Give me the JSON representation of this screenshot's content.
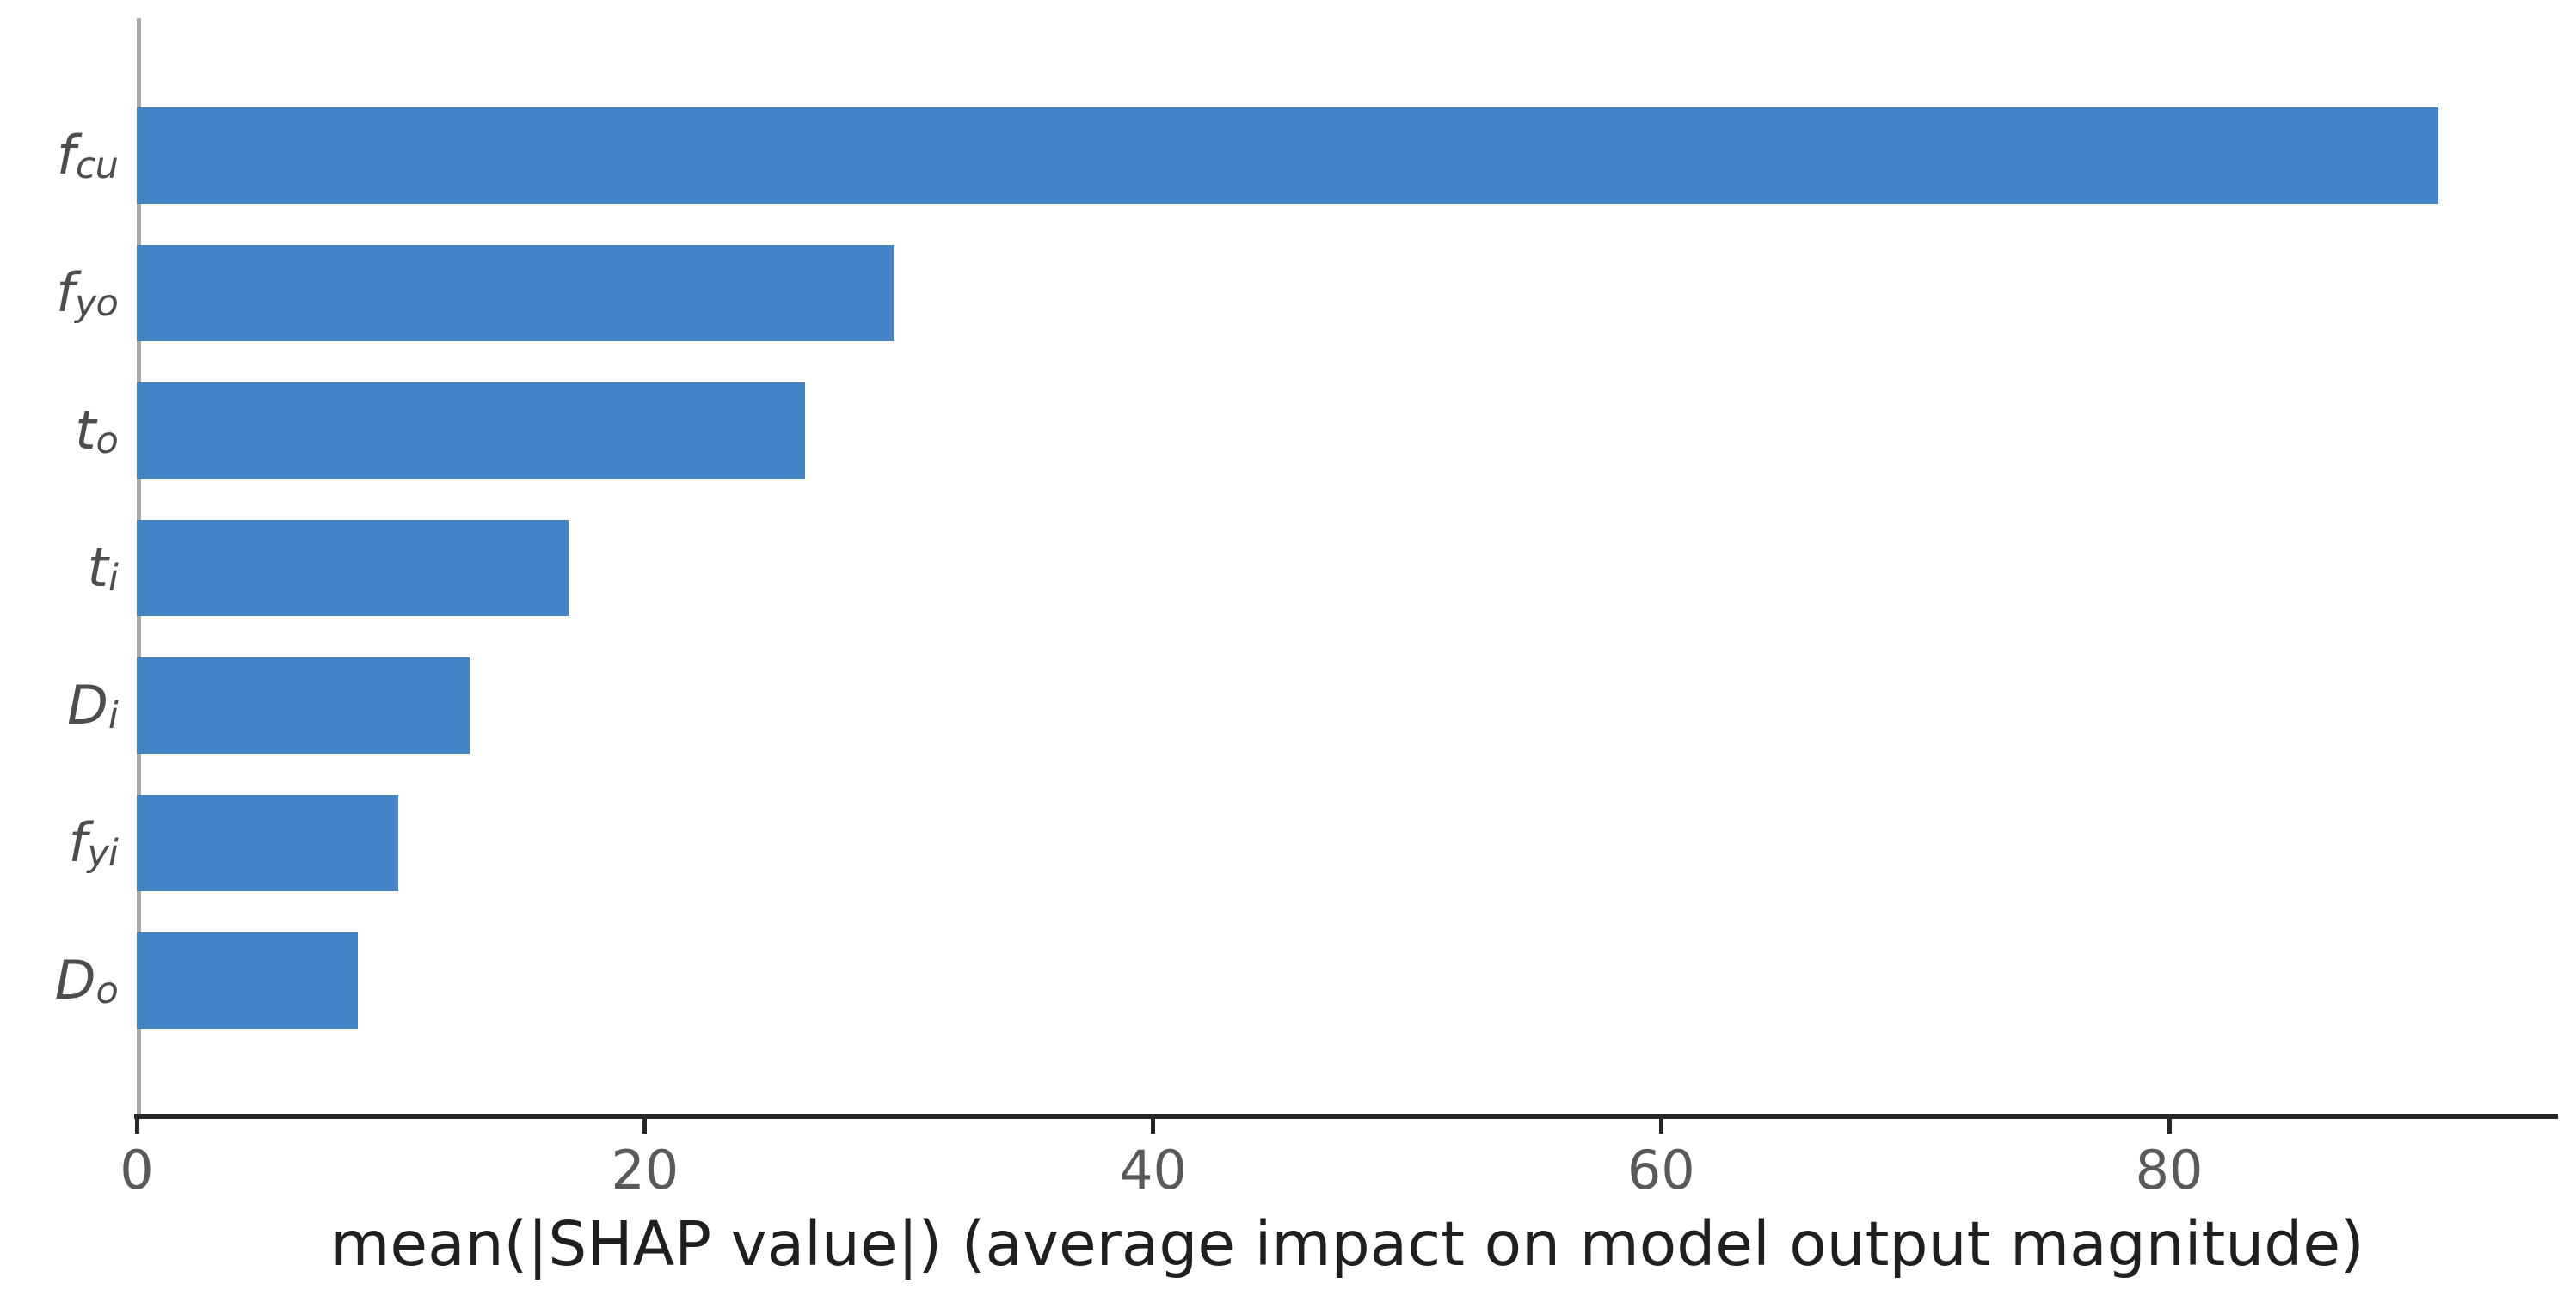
{
  "chart_data": {
    "type": "bar",
    "orientation": "horizontal",
    "title": "",
    "xlabel": "mean(|SHAP value|) (average impact on model output magnitude)",
    "ylabel": "",
    "categories": [
      {
        "name": "f_cu",
        "base": "f",
        "sub": "cu"
      },
      {
        "name": "f_yo",
        "base": "f",
        "sub": "yo"
      },
      {
        "name": "t_o",
        "base": "t",
        "sub": "o"
      },
      {
        "name": "t_i",
        "base": "t",
        "sub": "i"
      },
      {
        "name": "D_i",
        "base": "D",
        "sub": "i"
      },
      {
        "name": "f_yi",
        "base": "f",
        "sub": "yi"
      },
      {
        "name": "D_o",
        "base": "D",
        "sub": "o"
      }
    ],
    "values": [
      90.6,
      29.8,
      26.3,
      17.0,
      13.1,
      10.3,
      8.7
    ],
    "x_ticks": [
      0,
      20,
      40,
      60,
      80
    ],
    "xlim": [
      0,
      95.3
    ],
    "grid": false,
    "legend": null
  },
  "colors": {
    "bar": "#4384c6",
    "axis_line": "#262626",
    "y_spine": "#a9a9a9",
    "tick_label": "#595959",
    "feature_label": "#4d4d4d",
    "xlabel": "#1f1f1f",
    "background": "#ffffff"
  }
}
